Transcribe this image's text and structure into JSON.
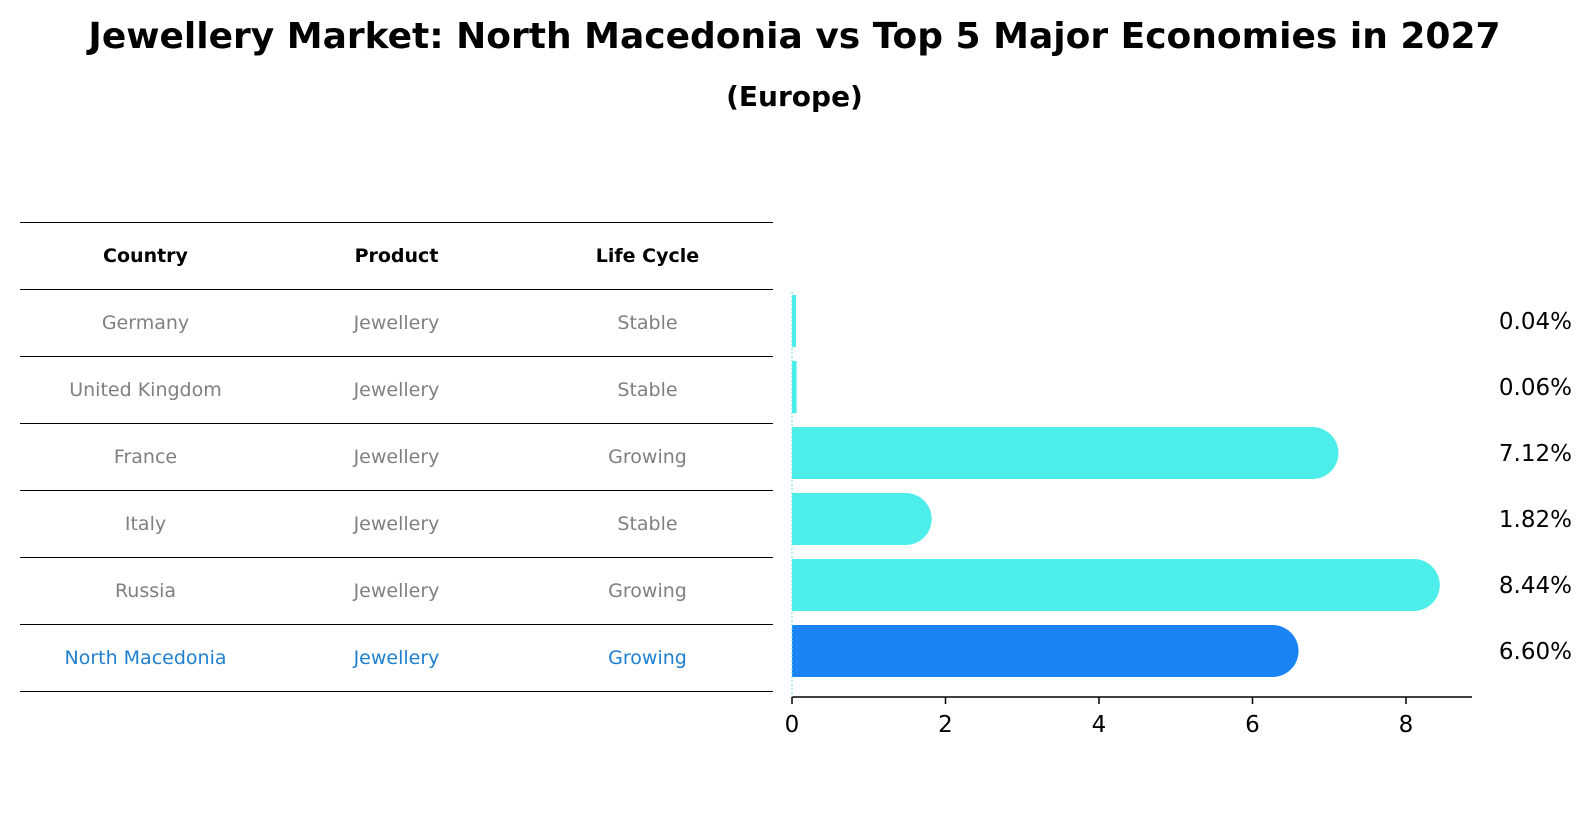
{
  "title": "Jewellery Market: North Macedonia vs Top 5 Major Economies in 2027",
  "subtitle": "(Europe)",
  "table": {
    "headers": [
      "Country",
      "Product",
      "Life Cycle"
    ],
    "rows": [
      [
        "Germany",
        "Jewellery",
        "Stable"
      ],
      [
        "United Kingdom",
        "Jewellery",
        "Stable"
      ],
      [
        "France",
        "Jewellery",
        "Growing"
      ],
      [
        "Italy",
        "Jewellery",
        "Stable"
      ],
      [
        "Russia",
        "Jewellery",
        "Growing"
      ],
      [
        "North Macedonia",
        "Jewellery",
        "Growing"
      ]
    ],
    "highlight_row": 5,
    "colors": {
      "text": "#808080",
      "highlight": "#1f7fd0"
    }
  },
  "chart_data": {
    "type": "bar",
    "orientation": "horizontal",
    "categories": [
      "Germany",
      "United Kingdom",
      "France",
      "Italy",
      "Russia",
      "North Macedonia"
    ],
    "values": [
      0.04,
      0.06,
      7.12,
      1.82,
      8.44,
      6.6
    ],
    "value_labels": [
      "0.04%",
      "0.06%",
      "7.12%",
      "1.82%",
      "8.44%",
      "6.60%"
    ],
    "xlim": [
      0,
      8.86
    ],
    "xticks": [
      0,
      2,
      4,
      6,
      8
    ],
    "colors": {
      "default": "#4deeea",
      "highlight": "#1a84f5"
    },
    "highlight_index": 5,
    "grid": false
  }
}
